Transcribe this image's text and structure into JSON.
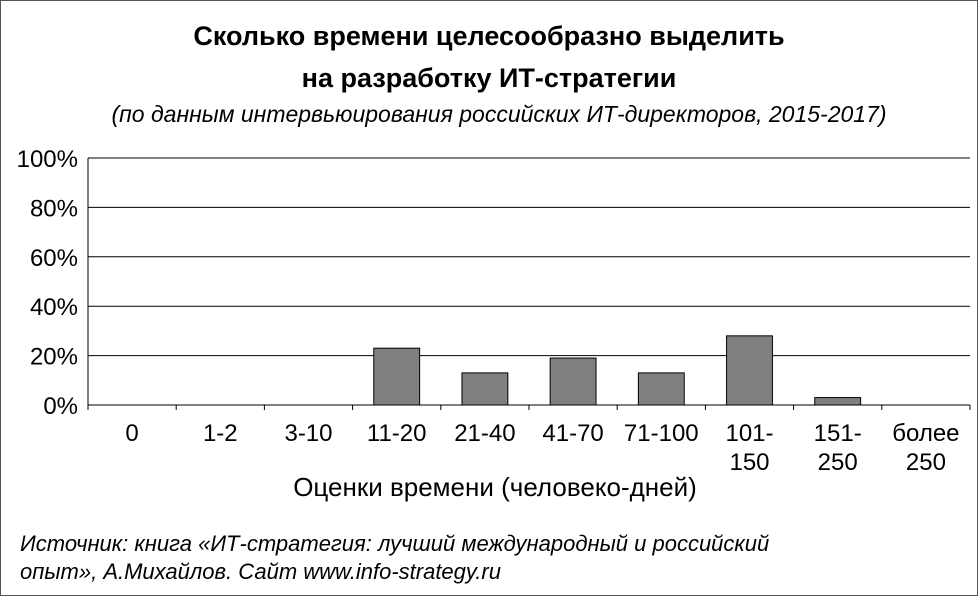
{
  "title_line1": "Сколько времени целесообразно выделить",
  "title_line2": "на разработку ИТ-стратегии",
  "subtitle": "(по данным интервьюирования российских ИТ-директоров, 2015-2017)",
  "source_line1": "Источник: книга «ИТ-стратегия: лучший международный и российский",
  "source_line2": "опыт», А.Михайлов.  Сайт www.info-strategy.ru",
  "colors": {
    "bar": "#808080",
    "bar_stroke": "#000000",
    "grid": "#000000"
  },
  "chart_data": {
    "type": "bar",
    "xlabel": "Оценки времени (человеко-дней)",
    "ylabel": "",
    "ylim": [
      0,
      100
    ],
    "y_ticks": [
      "0%",
      "20%",
      "40%",
      "60%",
      "80%",
      "100%"
    ],
    "grid": true,
    "categories": [
      [
        "0"
      ],
      [
        "1-2"
      ],
      [
        "3-10"
      ],
      [
        "11-20"
      ],
      [
        "21-40"
      ],
      [
        "41-70"
      ],
      [
        "71-100"
      ],
      [
        "101-",
        "150"
      ],
      [
        "151-",
        "250"
      ],
      [
        "более",
        "250"
      ]
    ],
    "values": [
      0,
      0,
      0,
      23,
      13,
      19,
      13,
      28,
      3,
      0
    ]
  }
}
